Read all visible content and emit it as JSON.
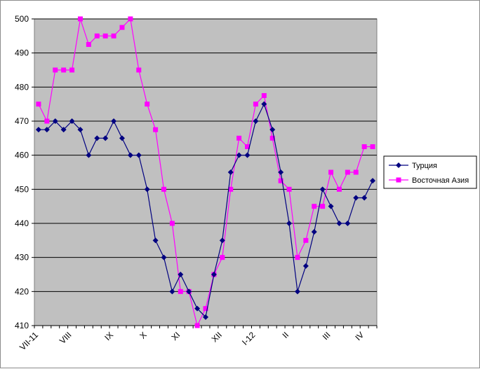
{
  "chart_data": {
    "type": "line",
    "categories": [
      "VII-11",
      "",
      "",
      "",
      "VIII",
      "",
      "",
      "",
      "",
      "IX",
      "",
      "",
      "",
      "X",
      "",
      "",
      "",
      "XI",
      "",
      "",
      "",
      "",
      "XII",
      "",
      "",
      "",
      "I-12",
      "",
      "",
      "",
      "II",
      "",
      "",
      "",
      "",
      "III",
      "",
      "",
      "",
      "IV",
      ""
    ],
    "x_tick_labels": [
      "VII-11",
      "VIII",
      "IX",
      "X",
      "XI",
      "XII",
      "I-12",
      "II",
      "III",
      "IV"
    ],
    "ylim": [
      410,
      500
    ],
    "yticks": [
      410,
      420,
      430,
      440,
      450,
      460,
      470,
      480,
      490,
      500
    ],
    "grid": true,
    "legend_position": "right",
    "series": [
      {
        "name": "Турция",
        "color": "#000080",
        "marker": "diamond",
        "values": [
          467.5,
          467.5,
          470,
          467.5,
          470,
          467.5,
          460,
          465,
          465,
          470,
          465,
          460,
          460,
          450,
          435,
          430,
          420,
          425,
          420,
          415,
          412.5,
          425,
          435,
          455,
          460,
          460,
          470,
          475,
          467.5,
          455,
          440,
          420,
          427.5,
          437.5,
          450,
          445,
          440,
          440,
          447.5,
          447.5,
          452.5
        ]
      },
      {
        "name": "Восточная Азия",
        "color": "#ff00ff",
        "marker": "square",
        "values": [
          475,
          470,
          485,
          485,
          485,
          500,
          492.5,
          495,
          495,
          495,
          497.5,
          500,
          485,
          475,
          467.5,
          450,
          440,
          420,
          420,
          410,
          415,
          425,
          430,
          450,
          465,
          462.5,
          475,
          477.5,
          465,
          452.5,
          450,
          430,
          435,
          445,
          445,
          455,
          450,
          455,
          455,
          462.5,
          462.5
        ]
      }
    ]
  }
}
